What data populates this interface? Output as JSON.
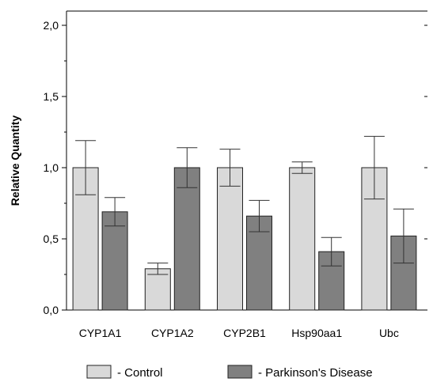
{
  "chart_data": {
    "type": "bar",
    "title": "",
    "xlabel": "",
    "ylabel": "Relative Quantity",
    "categories": [
      "CYP1A1",
      "CYP1A2",
      "CYP2B1",
      "Hsp90aa1",
      "Ubc"
    ],
    "ylim": [
      0,
      2.1
    ],
    "yticks": [
      "0,0",
      "0,5",
      "1,0",
      "1,5",
      "2,0"
    ],
    "ytick_values": [
      0,
      0.5,
      1.0,
      1.5,
      2.0
    ],
    "grid": false,
    "legend_position": "bottom",
    "series": [
      {
        "name": "- Control",
        "color": "#d9d9d9",
        "values": [
          1.0,
          0.29,
          1.0,
          1.0,
          1.0
        ],
        "error": [
          0.19,
          0.04,
          0.13,
          0.04,
          0.22
        ]
      },
      {
        "name": "- Parkinson's Disease",
        "color": "#808080",
        "values": [
          0.69,
          1.0,
          0.66,
          0.41,
          0.52
        ],
        "error": [
          0.1,
          0.14,
          0.11,
          0.1,
          0.19
        ]
      }
    ]
  }
}
